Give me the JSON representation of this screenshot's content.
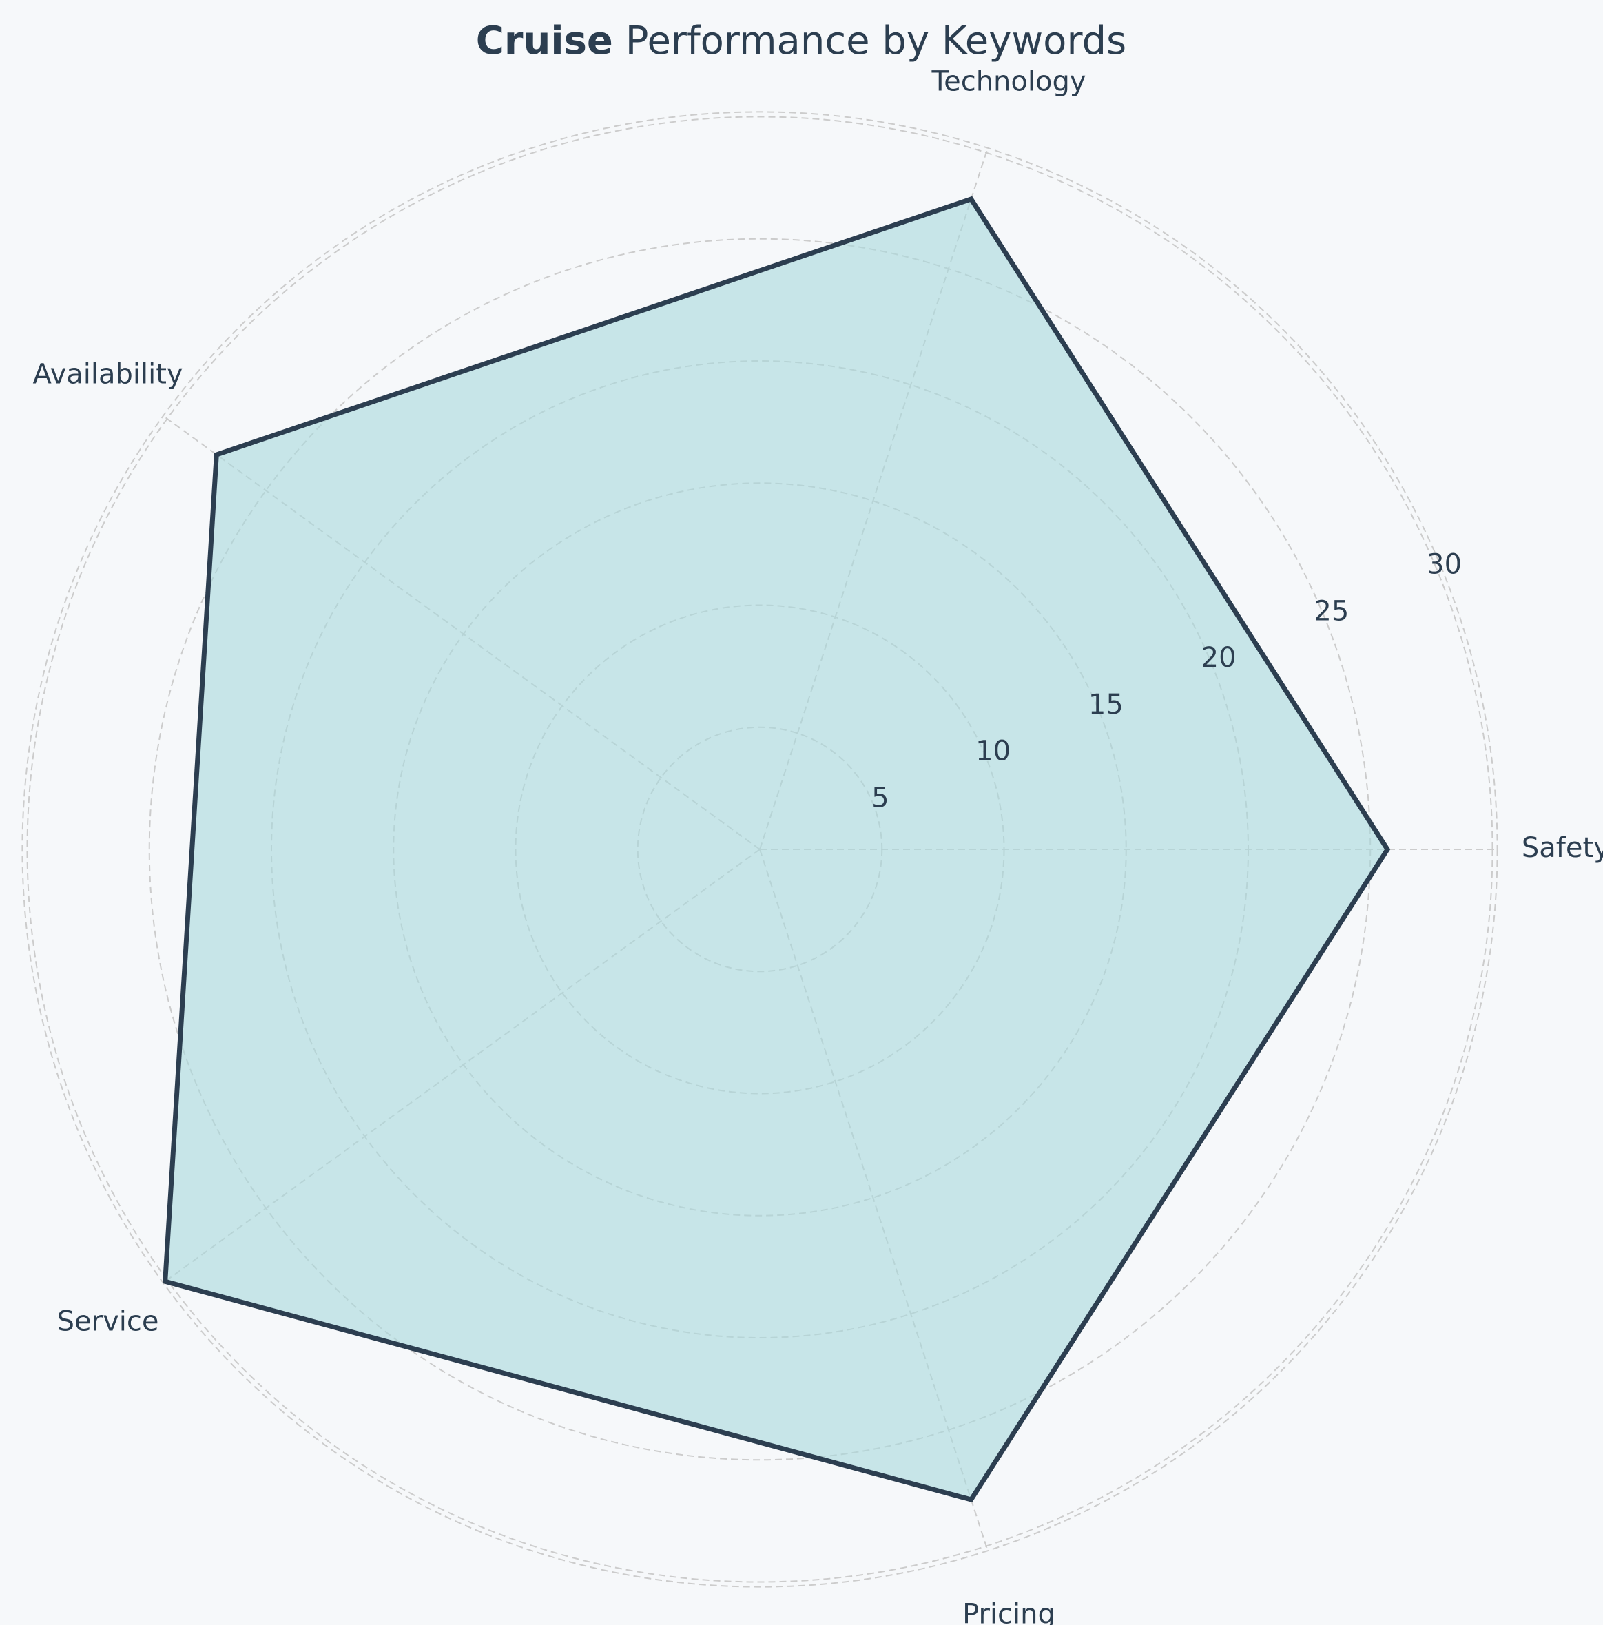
{
  "title": {
    "brand": "Cruise",
    "rest": " Performance by Keywords"
  },
  "colors": {
    "background": "#f6f8fa",
    "fill": "#a8d8dc",
    "line": "#2c3e50",
    "grid": "#cccccc",
    "text": "#2c3e50"
  },
  "chart_data": {
    "type": "radar",
    "categories": [
      "Safety",
      "Technology",
      "Availability",
      "Service",
      "Pricing"
    ],
    "series": [
      {
        "values": [
          25.7,
          28.0,
          27.5,
          30.1,
          28.0
        ]
      }
    ],
    "rlim": [
      0,
      30
    ],
    "r_ticks": [
      5,
      10,
      15,
      20,
      25,
      30
    ],
    "tick_labels": [
      "5",
      "10",
      "15",
      "20",
      "25",
      "30"
    ],
    "grid": true,
    "grid_style": "dashed"
  }
}
